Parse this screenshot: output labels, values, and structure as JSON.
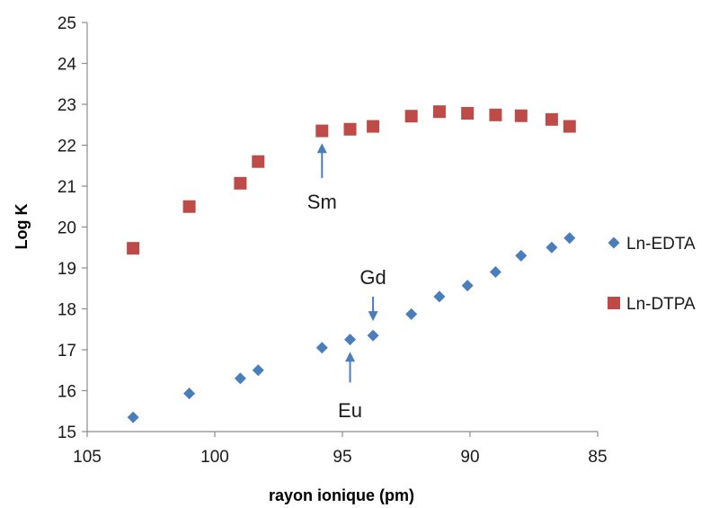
{
  "chart_data": {
    "type": "scatter",
    "title": "",
    "xlabel": "rayon ionique (pm)",
    "ylabel": "Log K",
    "xlim": [
      105,
      85
    ],
    "ylim": [
      15,
      25
    ],
    "x_reversed": true,
    "x_ticks": [
      105,
      100,
      95,
      90,
      85
    ],
    "y_ticks": [
      15,
      16,
      17,
      18,
      19,
      20,
      21,
      22,
      23,
      24,
      25
    ],
    "grid": false,
    "legend_position": "right",
    "series": [
      {
        "name": "Ln-EDTA",
        "marker": "diamond",
        "color": "#4a7ebb",
        "points": [
          {
            "x": 103.2,
            "y": 15.35
          },
          {
            "x": 101.0,
            "y": 15.93
          },
          {
            "x": 99.0,
            "y": 16.3
          },
          {
            "x": 98.3,
            "y": 16.5
          },
          {
            "x": 95.8,
            "y": 17.05
          },
          {
            "x": 94.7,
            "y": 17.25
          },
          {
            "x": 93.8,
            "y": 17.35
          },
          {
            "x": 92.3,
            "y": 17.87
          },
          {
            "x": 91.2,
            "y": 18.3
          },
          {
            "x": 90.1,
            "y": 18.57
          },
          {
            "x": 89.0,
            "y": 18.9
          },
          {
            "x": 88.0,
            "y": 19.3
          },
          {
            "x": 86.8,
            "y": 19.5
          },
          {
            "x": 86.1,
            "y": 19.73
          }
        ]
      },
      {
        "name": "Ln-DTPA",
        "marker": "square",
        "color": "#be4b48",
        "points": [
          {
            "x": 103.2,
            "y": 19.48
          },
          {
            "x": 101.0,
            "y": 20.5
          },
          {
            "x": 99.0,
            "y": 21.07
          },
          {
            "x": 98.3,
            "y": 21.6
          },
          {
            "x": 95.8,
            "y": 22.35
          },
          {
            "x": 94.7,
            "y": 22.39
          },
          {
            "x": 93.8,
            "y": 22.46
          },
          {
            "x": 92.3,
            "y": 22.71
          },
          {
            "x": 91.2,
            "y": 22.82
          },
          {
            "x": 90.1,
            "y": 22.78
          },
          {
            "x": 89.0,
            "y": 22.74
          },
          {
            "x": 88.0,
            "y": 22.72
          },
          {
            "x": 86.8,
            "y": 22.63
          },
          {
            "x": 86.1,
            "y": 22.46
          }
        ]
      }
    ],
    "annotations": [
      {
        "label": "Sm",
        "x": 95.8,
        "y_start": 21.2,
        "y_end": 22.05,
        "direction": "up",
        "label_y": 20.45
      },
      {
        "label": "Gd",
        "x": 93.8,
        "y_start": 18.3,
        "y_end": 17.7,
        "direction": "down",
        "label_y": 18.6
      },
      {
        "label": "Eu",
        "x": 94.7,
        "y_start": 16.2,
        "y_end": 16.95,
        "direction": "up",
        "label_y": 15.35
      }
    ],
    "annotation_color": "#4a7ebb"
  }
}
